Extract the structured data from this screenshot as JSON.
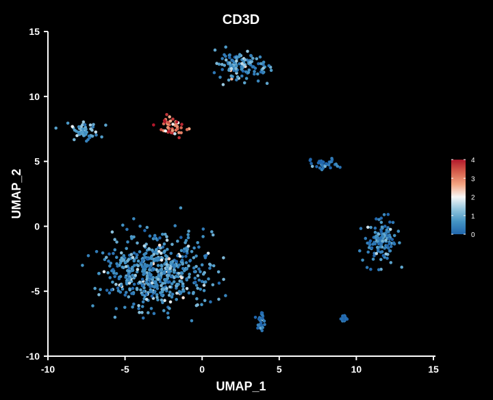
{
  "chart_data": {
    "type": "scatter",
    "title": "CD3D",
    "xlabel": "UMAP_1",
    "ylabel": "UMAP_2",
    "xlim": [
      -10,
      15
    ],
    "ylim": [
      -10,
      15
    ],
    "x_ticks": [
      "-10",
      "-5",
      "0",
      "5",
      "10",
      "15"
    ],
    "y_ticks": [
      "15",
      "10",
      "5",
      "0",
      "-5",
      "-10"
    ],
    "grid": false,
    "background": "#000000",
    "colorbar": {
      "min": 0,
      "max": 4,
      "ticks": [
        "4",
        "3",
        "2",
        "1",
        "0"
      ],
      "colors": [
        "#2166ac",
        "#4393c3",
        "#92c5de",
        "#f7f7f7",
        "#f4a582",
        "#d6604d",
        "#b2182b"
      ],
      "placement": "right"
    },
    "clusters": [
      {
        "center": [
          2.5,
          12.3
        ],
        "spread": [
          1.8,
          1.2
        ],
        "expression": 0.6
      },
      {
        "center": [
          -7.6,
          7.3
        ],
        "spread": [
          1.3,
          0.8
        ],
        "expression": 0.8
      },
      {
        "center": [
          -2.0,
          7.7
        ],
        "spread": [
          1.0,
          0.8
        ],
        "expression": 3.0
      },
      {
        "center": [
          -3.0,
          -3.5
        ],
        "spread": [
          3.5,
          3.0
        ],
        "expression": 0.6
      },
      {
        "center": [
          11.7,
          -1.2
        ],
        "spread": [
          1.3,
          1.7
        ],
        "expression": 0.4
      },
      {
        "center": [
          7.7,
          4.8
        ],
        "spread": [
          1.2,
          0.5
        ],
        "expression": 0.1
      },
      {
        "center": [
          3.8,
          -7.3
        ],
        "spread": [
          0.3,
          0.8
        ],
        "expression": 0.1
      },
      {
        "center": [
          9.2,
          -7.1
        ],
        "spread": [
          0.2,
          0.2
        ],
        "expression": 0.1
      }
    ]
  }
}
